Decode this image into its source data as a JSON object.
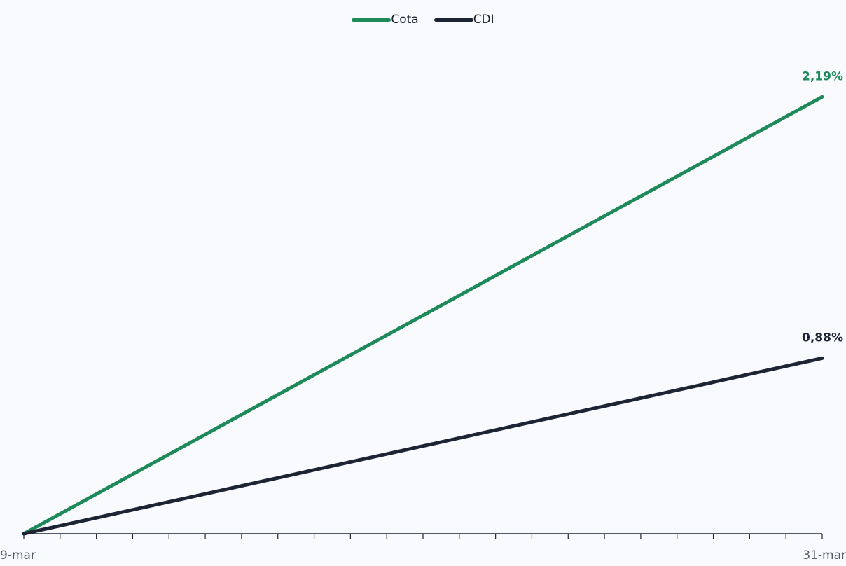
{
  "chart_data": {
    "type": "line",
    "x": [
      "9-mar",
      "31-mar"
    ],
    "xticks_label": [
      "9-mar",
      "31-mar"
    ],
    "n_ticks": 23,
    "series": [
      {
        "name": "Cota",
        "values": [
          0,
          2.19
        ],
        "end_label": "2,19%",
        "color": "#1e8a5a"
      },
      {
        "name": "CDI",
        "values": [
          0,
          0.88
        ],
        "end_label": "0,88%",
        "color": "#1d2433"
      }
    ],
    "title": "",
    "xlabel": "",
    "ylabel": "",
    "ylim": [
      0,
      2.5
    ],
    "grid": false,
    "legend": "top-center"
  }
}
